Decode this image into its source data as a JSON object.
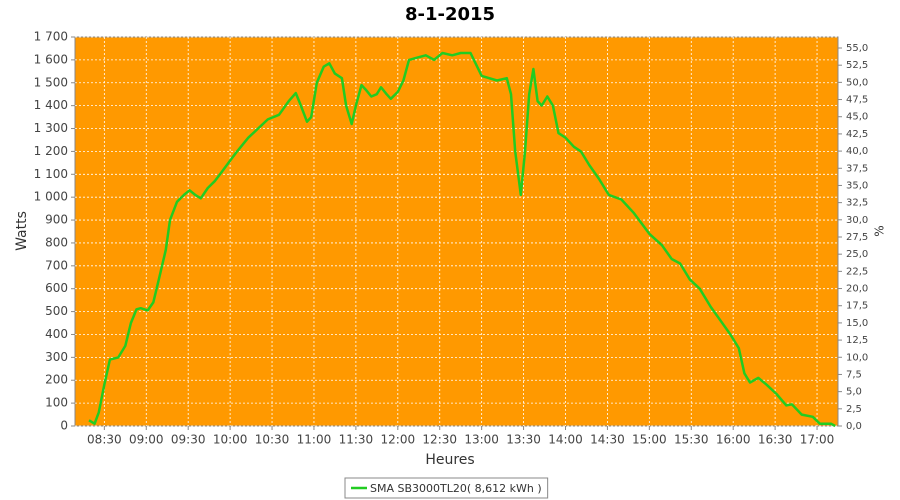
{
  "chart_data": {
    "type": "line",
    "title": "8-1-2015",
    "xlabel": "Heures",
    "ylabel": "Watts",
    "y2label": "%",
    "background": "#ff9900",
    "grid": true,
    "x": [
      "08:19",
      "08:23",
      "08:26",
      "08:30",
      "08:34",
      "08:40",
      "08:45",
      "08:49",
      "08:53",
      "08:56",
      "09:01",
      "09:05",
      "09:09",
      "09:14",
      "09:17",
      "09:22",
      "09:27",
      "09:31",
      "09:35",
      "09:39",
      "09:44",
      "09:49",
      "09:54",
      "10:00",
      "10:05",
      "10:13",
      "10:20",
      "10:27",
      "10:35",
      "10:42",
      "10:47",
      "10:50",
      "10:55",
      "10:58",
      "11:02",
      "11:07",
      "11:11",
      "11:15",
      "11:20",
      "11:23",
      "11:27",
      "11:30",
      "11:34",
      "11:37",
      "11:41",
      "11:45",
      "11:48",
      "11:52",
      "11:55",
      "12:00",
      "12:04",
      "12:08",
      "12:14",
      "12:20",
      "12:26",
      "12:32",
      "12:39",
      "12:45",
      "12:52",
      "13:00",
      "13:11",
      "13:18",
      "13:21",
      "13:24",
      "13:28",
      "13:31",
      "13:34",
      "13:37",
      "13:40",
      "13:43",
      "13:47",
      "13:51",
      "13:55",
      "14:00",
      "14:06",
      "14:11",
      "14:17",
      "14:24",
      "14:31",
      "14:40",
      "14:49",
      "15:00",
      "15:09",
      "15:16",
      "15:22",
      "15:29",
      "15:36",
      "15:44",
      "15:51",
      "15:58",
      "16:04",
      "16:08",
      "16:12",
      "16:18",
      "16:24",
      "16:31",
      "16:38",
      "16:42",
      "16:49",
      "16:57",
      "17:02",
      "17:10",
      "17:13"
    ],
    "series": [
      {
        "name": "SMA SB3000TL20( 8,612 kWh )",
        "color": "#22cc22",
        "values": [
          25,
          10,
          60,
          180,
          290,
          300,
          350,
          450,
          510,
          515,
          505,
          540,
          640,
          770,
          900,
          980,
          1010,
          1030,
          1010,
          995,
          1040,
          1070,
          1110,
          1160,
          1200,
          1260,
          1300,
          1340,
          1360,
          1420,
          1455,
          1410,
          1330,
          1350,
          1500,
          1570,
          1585,
          1540,
          1520,
          1400,
          1320,
          1400,
          1490,
          1470,
          1440,
          1450,
          1480,
          1450,
          1430,
          1460,
          1510,
          1600,
          1610,
          1620,
          1600,
          1630,
          1620,
          1630,
          1630,
          1530,
          1510,
          1520,
          1450,
          1200,
          1010,
          1200,
          1450,
          1560,
          1420,
          1400,
          1440,
          1400,
          1280,
          1260,
          1220,
          1200,
          1140,
          1080,
          1010,
          990,
          930,
          840,
          790,
          730,
          710,
          640,
          600,
          520,
          460,
          400,
          340,
          230,
          190,
          210,
          180,
          140,
          90,
          95,
          50,
          40,
          10,
          10,
          0
        ]
      }
    ],
    "xlim": [
      "08:09",
      "17:15"
    ],
    "xticks": [
      "08:30",
      "09:00",
      "09:30",
      "10:00",
      "10:30",
      "11:00",
      "11:30",
      "12:00",
      "12:30",
      "13:00",
      "13:30",
      "14:00",
      "14:30",
      "15:00",
      "15:30",
      "16:00",
      "16:30",
      "17:00"
    ],
    "ylim": [
      0,
      1700
    ],
    "yticks": [
      0,
      100,
      200,
      300,
      400,
      500,
      600,
      700,
      800,
      900,
      {
        "value": 1000,
        "label": "1 000"
      },
      {
        "value": 1100,
        "label": "1 100"
      },
      {
        "value": 1200,
        "label": "1 200"
      },
      {
        "value": 1300,
        "label": "1 300"
      },
      {
        "value": 1400,
        "label": "1 400"
      },
      {
        "value": 1500,
        "label": "1 500"
      },
      {
        "value": 1600,
        "label": "1 600"
      },
      {
        "value": 1700,
        "label": "1 700"
      }
    ],
    "y2lim": [
      0,
      56.6
    ],
    "y2ticks": [
      {
        "value": 0,
        "label": "0,0"
      },
      {
        "value": 2.5,
        "label": "2,5"
      },
      {
        "value": 5,
        "label": "5,0"
      },
      {
        "value": 7.5,
        "label": "7,5"
      },
      {
        "value": 10,
        "label": "10,0"
      },
      {
        "value": 12.5,
        "label": "12,5"
      },
      {
        "value": 15,
        "label": "15,0"
      },
      {
        "value": 17.5,
        "label": "17,5"
      },
      {
        "value": 20,
        "label": "20,0"
      },
      {
        "value": 22.5,
        "label": "22,5"
      },
      {
        "value": 25,
        "label": "25,0"
      },
      {
        "value": 27.5,
        "label": "27,5"
      },
      {
        "value": 30,
        "label": "30,0"
      },
      {
        "value": 32.5,
        "label": "32,5"
      },
      {
        "value": 35,
        "label": "35,0"
      },
      {
        "value": 37.5,
        "label": "37,5"
      },
      {
        "value": 40,
        "label": "40,0"
      },
      {
        "value": 42.5,
        "label": "42,5"
      },
      {
        "value": 45,
        "label": "45,0"
      },
      {
        "value": 47.5,
        "label": "47,5"
      },
      {
        "value": 50,
        "label": "50,0"
      },
      {
        "value": 52.5,
        "label": "52,5"
      },
      {
        "value": 55,
        "label": "55,0"
      }
    ]
  }
}
